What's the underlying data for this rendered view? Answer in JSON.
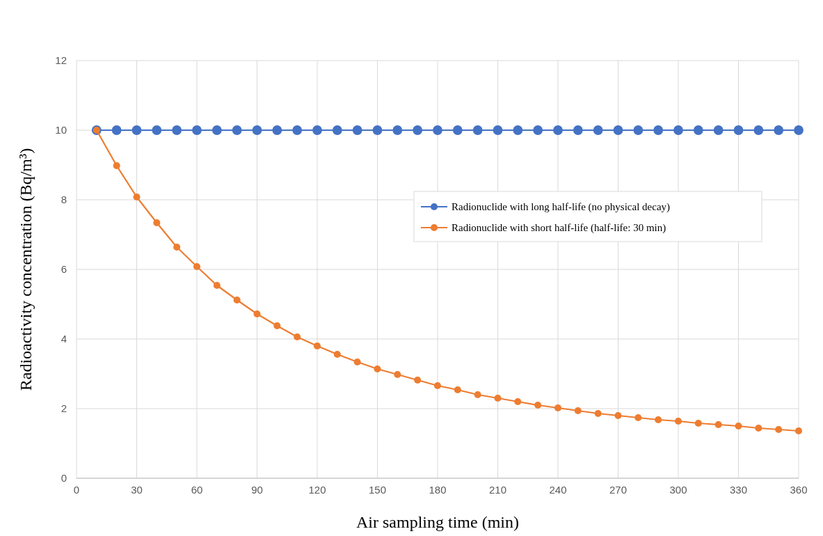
{
  "chart_data": {
    "type": "line",
    "xlabel": "Air sampling time (min)",
    "ylabel": "Radioactivity concentration (Bq/m³)",
    "x": [
      10,
      20,
      30,
      40,
      50,
      60,
      70,
      80,
      90,
      100,
      110,
      120,
      130,
      140,
      150,
      160,
      170,
      180,
      190,
      200,
      210,
      220,
      230,
      240,
      250,
      260,
      270,
      280,
      290,
      300,
      310,
      320,
      330,
      340,
      350,
      360
    ],
    "series": [
      {
        "name": "Radionuclide with long half-life (no physical decay)",
        "color": "#4472c4",
        "values": [
          10,
          10,
          10,
          10,
          10,
          10,
          10,
          10,
          10,
          10,
          10,
          10,
          10,
          10,
          10,
          10,
          10,
          10,
          10,
          10,
          10,
          10,
          10,
          10,
          10,
          10,
          10,
          10,
          10,
          10,
          10,
          10,
          10,
          10,
          10,
          10
        ]
      },
      {
        "name": "Radionuclide with short half-life (half-life: 30 min)",
        "color": "#ed7d31",
        "values": [
          10,
          8.98,
          8.08,
          7.34,
          6.64,
          6.08,
          5.54,
          5.12,
          4.72,
          4.38,
          4.06,
          3.8,
          3.56,
          3.34,
          3.14,
          2.98,
          2.82,
          2.66,
          2.54,
          2.4,
          2.3,
          2.2,
          2.1,
          2.02,
          1.94,
          1.86,
          1.8,
          1.74,
          1.68,
          1.64,
          1.58,
          1.54,
          1.5,
          1.44,
          1.4,
          1.36
        ]
      }
    ],
    "xlim": [
      0,
      360
    ],
    "xticks": [
      0,
      30,
      60,
      90,
      120,
      150,
      180,
      210,
      240,
      270,
      300,
      330,
      360
    ],
    "ylim": [
      0,
      12
    ],
    "yticks": [
      0,
      2,
      4,
      6,
      8,
      10,
      12
    ],
    "grid": true,
    "legend": "right",
    "marker": "circle",
    "line_style": "solid"
  }
}
